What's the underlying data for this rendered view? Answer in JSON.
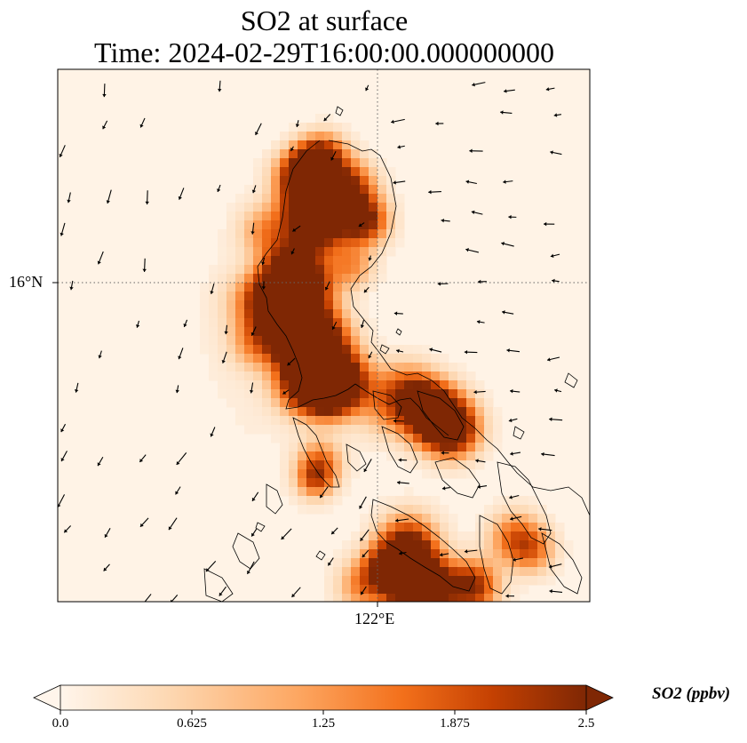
{
  "map": {
    "title_line1": "SO2 at surface",
    "title_line2": "Time: 2024-02-29T16:00:00.000000000",
    "lat_label": "16°N",
    "lon_label": "122°E",
    "colorbar_label": "SO2 (ppbv)",
    "colorbar_ticks": [
      "0.0",
      "0.625",
      "1.25",
      "1.875",
      "2.5"
    ],
    "colorbar_range": [
      0,
      2.5
    ],
    "colormap": [
      "#fff5eb",
      "#fdd9b4",
      "#fda762",
      "#f3701b",
      "#c54102",
      "#7f2704"
    ],
    "colormap_name": "OrRd",
    "extend": "both",
    "gridline_style": "dotted",
    "overlay": "wind-vectors",
    "coastline_color": "#000000"
  }
}
